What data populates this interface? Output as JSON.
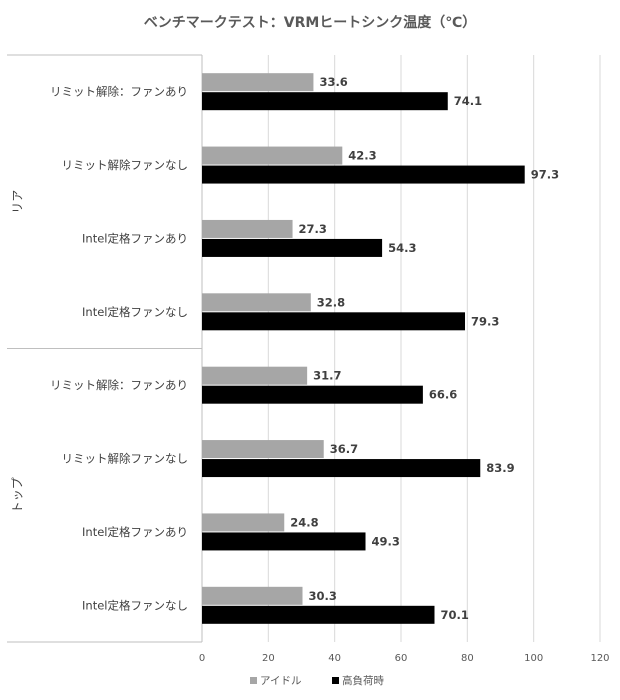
{
  "chart_data": {
    "type": "bar",
    "orientation": "horizontal",
    "title": "ベンチマークテスト：VRMヒートシンク温度（℃）",
    "groups": [
      {
        "label": "リア",
        "categories": [
          "リミット解除：ファンあり",
          "リミット解除ファンなし",
          "Intel定格ファンあり",
          "Intel定格ファンなし"
        ]
      },
      {
        "label": "トップ",
        "categories": [
          "リミット解除：ファンあり",
          "リミット解除ファンなし",
          "Intel定格ファンあり",
          "Intel定格ファンなし"
        ]
      }
    ],
    "series": [
      {
        "name": "アイドル",
        "color": "#a6a6a6",
        "values": [
          33.6,
          42.3,
          27.3,
          32.8,
          31.7,
          36.7,
          24.8,
          30.3
        ]
      },
      {
        "name": "高負荷時",
        "color": "#000000",
        "values": [
          74.1,
          97.3,
          54.3,
          79.3,
          66.6,
          83.9,
          49.3,
          70.1
        ]
      }
    ],
    "xlim": [
      0,
      120
    ],
    "xticks": [
      "0",
      "20",
      "40",
      "60",
      "80",
      "100",
      "120"
    ],
    "grid": true,
    "data_labels": true,
    "legend_position": "bottom"
  }
}
